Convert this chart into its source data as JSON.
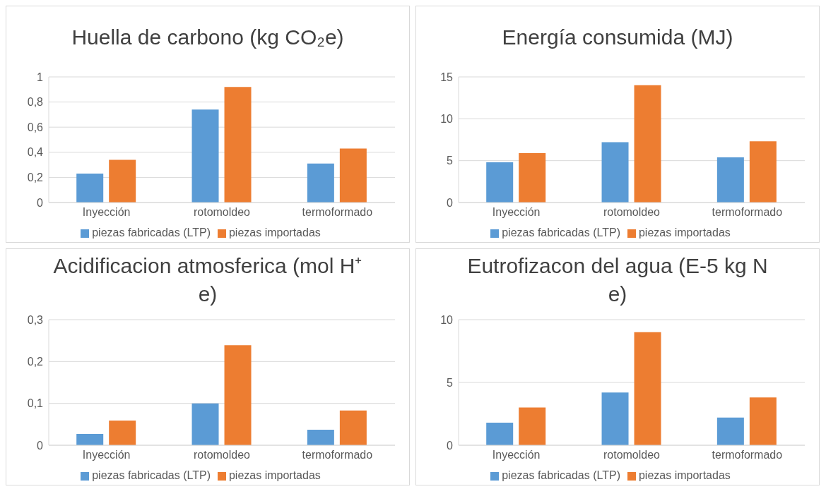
{
  "chart_data": [
    {
      "type": "bar",
      "title": "Huella de carbono (kg CO₂e)",
      "categories": [
        "Inyección",
        "rotomoldeo",
        "termoformado"
      ],
      "series": [
        {
          "name": "piezas fabricadas (LTP)",
          "color": "#5b9bd5",
          "values": [
            0.23,
            0.74,
            0.31
          ]
        },
        {
          "name": "piezas importadas",
          "color": "#ed7d31",
          "values": [
            0.34,
            0.92,
            0.43
          ]
        }
      ],
      "ylim": [
        0,
        1
      ],
      "yticks": [
        0,
        {
          "value": 0.2,
          "label": "0,2"
        },
        {
          "value": 0.4,
          "label": "0,4"
        },
        {
          "value": 0.6,
          "label": "0,6"
        },
        {
          "value": 0.8,
          "label": "0,8"
        },
        1
      ],
      "grid": "y",
      "legend": "bottom"
    },
    {
      "type": "bar",
      "title": "Energía consumida (MJ)",
      "categories": [
        "Inyección",
        "rotomoldeo",
        "termoformado"
      ],
      "series": [
        {
          "name": "piezas fabricadas (LTP)",
          "color": "#5b9bd5",
          "values": [
            4.8,
            7.2,
            5.4
          ]
        },
        {
          "name": "piezas importadas",
          "color": "#ed7d31",
          "values": [
            5.9,
            14,
            7.3
          ]
        }
      ],
      "ylim": [
        0,
        15
      ],
      "yticks": [
        0,
        5,
        10,
        15
      ],
      "grid": "y",
      "legend": "bottom"
    },
    {
      "type": "bar",
      "title": "Acidificacion atmosferica (mol H⁺ e)",
      "categories": [
        "Inyección",
        "rotomoldeo",
        "termoformado"
      ],
      "series": [
        {
          "name": "piezas fabricadas (LTP)",
          "color": "#5b9bd5",
          "values": [
            0.027,
            0.1,
            0.037
          ]
        },
        {
          "name": "piezas importadas",
          "color": "#ed7d31",
          "values": [
            0.059,
            0.239,
            0.083
          ]
        }
      ],
      "ylim": [
        0,
        0.3
      ],
      "yticks": [
        0,
        {
          "value": 0.1,
          "label": "0,1"
        },
        {
          "value": 0.2,
          "label": "0,2"
        },
        {
          "value": 0.3,
          "label": "0,3"
        }
      ],
      "grid": "y",
      "legend": "bottom"
    },
    {
      "type": "bar",
      "title": "Eutrofizacon del agua (E-5 kg N e)",
      "categories": [
        "Inyección",
        "rotomoldeo",
        "termoformado"
      ],
      "series": [
        {
          "name": "piezas fabricadas (LTP)",
          "color": "#5b9bd5",
          "values": [
            1.8,
            4.2,
            2.2
          ]
        },
        {
          "name": "piezas importadas",
          "color": "#ed7d31",
          "values": [
            3,
            9,
            3.8
          ]
        }
      ],
      "ylim": [
        0,
        10
      ],
      "yticks": [
        0,
        5,
        10
      ],
      "grid": "y",
      "legend": "bottom"
    }
  ]
}
